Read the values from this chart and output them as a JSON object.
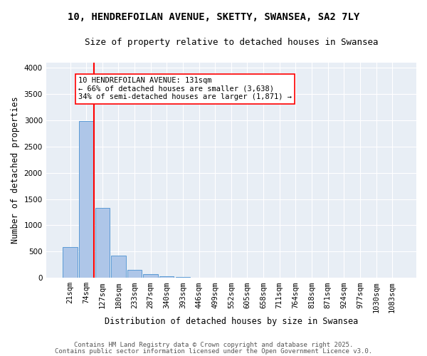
{
  "title_line1": "10, HENDREFOILAN AVENUE, SKETTY, SWANSEA, SA2 7LY",
  "title_line2": "Size of property relative to detached houses in Swansea",
  "xlabel": "Distribution of detached houses by size in Swansea",
  "ylabel": "Number of detached properties",
  "bin_labels": [
    "21sqm",
    "74sqm",
    "127sqm",
    "180sqm",
    "233sqm",
    "287sqm",
    "340sqm",
    "393sqm",
    "446sqm",
    "499sqm",
    "552sqm",
    "605sqm",
    "658sqm",
    "711sqm",
    "764sqm",
    "818sqm",
    "871sqm",
    "924sqm",
    "977sqm",
    "1030sqm",
    "1083sqm"
  ],
  "bin_values": [
    580,
    2980,
    1330,
    430,
    155,
    75,
    35,
    20,
    10,
    0,
    0,
    0,
    0,
    0,
    0,
    0,
    0,
    0,
    0,
    0,
    0
  ],
  "bar_color": "#aec6e8",
  "bar_edge_color": "#5b9bd5",
  "background_color": "#e8eef5",
  "grid_color": "#ffffff",
  "vline_color": "red",
  "annotation_text": "10 HENDREFOILAN AVENUE: 131sqm\n← 66% of detached houses are smaller (3,638)\n34% of semi-detached houses are larger (1,871) →",
  "annotation_box_color": "white",
  "annotation_box_edge_color": "red",
  "ylim": [
    0,
    4100
  ],
  "yticks": [
    0,
    500,
    1000,
    1500,
    2000,
    2500,
    3000,
    3500,
    4000
  ],
  "footer_line1": "Contains HM Land Registry data © Crown copyright and database right 2025.",
  "footer_line2": "Contains public sector information licensed under the Open Government Licence v3.0.",
  "title_fontsize": 10,
  "subtitle_fontsize": 9,
  "axis_label_fontsize": 8.5,
  "tick_fontsize": 7.5,
  "footer_fontsize": 6.5,
  "annotation_fontsize": 7.5
}
